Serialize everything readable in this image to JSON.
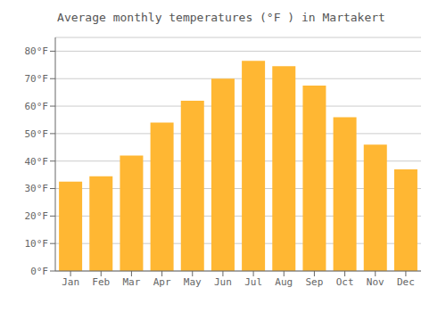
{
  "chart_data": {
    "type": "bar",
    "title": "Average monthly temperatures (°F ) in Martakert",
    "categories": [
      "Jan",
      "Feb",
      "Mar",
      "Apr",
      "May",
      "Jun",
      "Jul",
      "Aug",
      "Sep",
      "Oct",
      "Nov",
      "Dec"
    ],
    "values": [
      32.5,
      34.5,
      42.0,
      54.0,
      62.0,
      70.0,
      76.5,
      74.5,
      67.5,
      56.0,
      46.0,
      37.0
    ],
    "color": "#FFB733",
    "ylim": [
      0,
      85
    ],
    "yticks": [
      {
        "value": 0,
        "label": "0°F"
      },
      {
        "value": 10,
        "label": "10°F"
      },
      {
        "value": 20,
        "label": "20°F"
      },
      {
        "value": 30,
        "label": "30°F"
      },
      {
        "value": 40,
        "label": "40°F"
      },
      {
        "value": 50,
        "label": "50°F"
      },
      {
        "value": 60,
        "label": "60°F"
      },
      {
        "value": 70,
        "label": "70°F"
      },
      {
        "value": 80,
        "label": "80°F"
      }
    ],
    "grid": true
  }
}
